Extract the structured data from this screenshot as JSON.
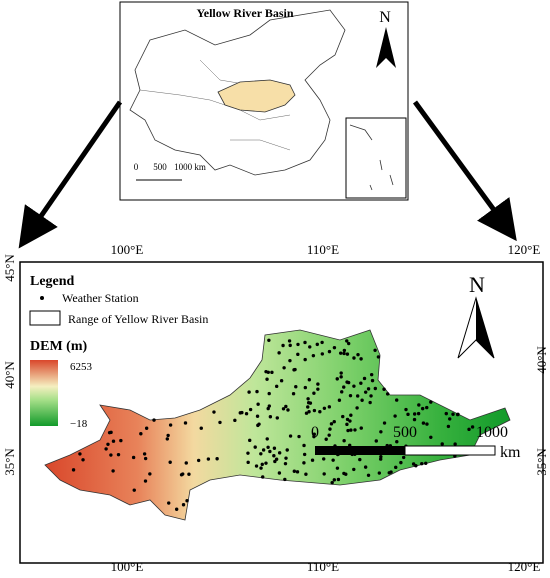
{
  "inset_map": {
    "title": "Yellow River Basin",
    "north": "N",
    "scale": [
      "0",
      "500",
      "1000 km"
    ]
  },
  "main_map": {
    "longitudes": [
      "100°E",
      "110°E",
      "120°E"
    ],
    "latitudes": [
      "45°N",
      "40°N",
      "35°N"
    ],
    "legend": {
      "title": "Legend",
      "items": [
        "Weather Station",
        "Range of Yellow River Basin"
      ],
      "dem_title": "DEM (m)",
      "dem_max": "6253",
      "dem_min": "−18"
    },
    "north": "N",
    "scale": [
      "0",
      "500",
      "1000"
    ],
    "scale_unit": "km"
  }
}
